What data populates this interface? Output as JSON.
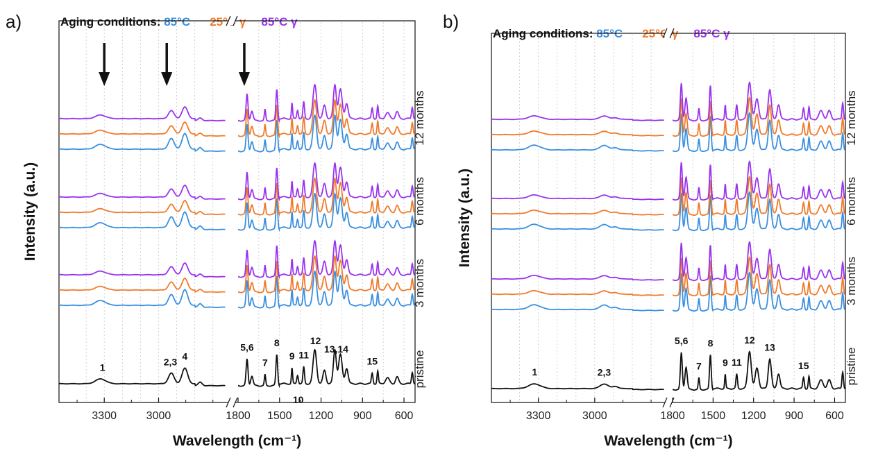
{
  "colors": {
    "blue": "#3a8fe0",
    "orange": "#f07a2a",
    "purple": "#9933ee",
    "black": "#111111"
  },
  "chart_data": [
    {
      "panel": "a)",
      "type": "line",
      "title": {
        "prefix": "Aging conditions:",
        "conditions": [
          {
            "label": "85°C",
            "color": "#3a8fe0"
          },
          {
            "label": "25°C γ",
            "color": "#f07a2a"
          },
          {
            "label": "85°C γ",
            "color": "#9933ee"
          }
        ]
      },
      "xlabel": "Wavelength (cm⁻¹)",
      "ylabel": "Intensity (a.u.)",
      "x_axis": "reversed, broken between ~2700 and 1800 cm⁻¹",
      "segment_left": {
        "xlim": [
          3550,
          2630
        ],
        "ticks": [
          "3300",
          "3000"
        ]
      },
      "segment_right": {
        "xlim": [
          1800,
          520
        ],
        "ticks": [
          "1800",
          "1500",
          "1200",
          "900",
          "600"
        ]
      },
      "grid": "vertical dotted",
      "series_groups": [
        "pristine",
        "3 months",
        "6 months",
        "12 months"
      ],
      "series_in_group": [
        "85°C",
        "25°C γ",
        "85°C γ"
      ],
      "peak_labels": [
        {
          "label": "1",
          "x": 3310
        },
        {
          "label": "2,3",
          "x": 2935
        },
        {
          "label": "4",
          "x": 2855
        },
        {
          "label": "5,6",
          "x": 1735
        },
        {
          "label": "7",
          "x": 1605
        },
        {
          "label": "8",
          "x": 1520
        },
        {
          "label": "9",
          "x": 1410
        },
        {
          "label": "10",
          "x": 1365
        },
        {
          "label": "11",
          "x": 1325
        },
        {
          "label": "12",
          "x": 1240
        },
        {
          "label": "13,14",
          "x": 1090
        },
        {
          "label": "15",
          "x": 830
        }
      ],
      "arrows_at": [
        3300,
        2955,
        1755
      ],
      "bands": [
        [
          3320,
          0.25,
          40
        ],
        [
          2930,
          0.55,
          22
        ],
        [
          2855,
          0.8,
          22
        ],
        [
          2770,
          0.18,
          15
        ],
        [
          1735,
          1.35,
          10
        ],
        [
          1700,
          0.5,
          12
        ],
        [
          1605,
          0.55,
          7
        ],
        [
          1520,
          1.6,
          9
        ],
        [
          1410,
          0.8,
          6
        ],
        [
          1370,
          0.45,
          8
        ],
        [
          1325,
          0.85,
          8
        ],
        [
          1245,
          1.75,
          18
        ],
        [
          1175,
          0.7,
          15
        ],
        [
          1100,
          1.75,
          15
        ],
        [
          1060,
          1.5,
          18
        ],
        [
          1015,
          0.8,
          15
        ],
        [
          830,
          0.55,
          8
        ],
        [
          790,
          0.65,
          7
        ],
        [
          720,
          0.3,
          20
        ],
        [
          650,
          0.35,
          15
        ],
        [
          540,
          0.6,
          8
        ]
      ],
      "baseline_drop": [
        [
          2800,
          1500,
          0.1
        ]
      ]
    },
    {
      "panel": "b)",
      "type": "line",
      "title": {
        "prefix": "Aging conditions:",
        "conditions": [
          {
            "label": "85°C",
            "color": "#3a8fe0"
          },
          {
            "label": "25°C γ",
            "color": "#f07a2a"
          },
          {
            "label": "85°C γ",
            "color": "#9933ee"
          }
        ]
      },
      "xlabel": "Wavelength (cm⁻¹)",
      "ylabel": "Intensity (a.u.)",
      "x_axis": "reversed, broken between ~2700 and 1800 cm⁻¹",
      "segment_left": {
        "xlim": [
          3550,
          2630
        ],
        "ticks": [
          "3300",
          "3000"
        ]
      },
      "segment_right": {
        "xlim": [
          1800,
          520
        ],
        "ticks": [
          "1800",
          "1500",
          "1200",
          "900",
          "600"
        ]
      },
      "grid": "vertical dotted",
      "series_groups": [
        "pristine",
        "3 months",
        "6 months",
        "12 months"
      ],
      "series_in_group": [
        "85°C",
        "25°C γ",
        "85°C γ"
      ],
      "peak_labels": [
        {
          "label": "1",
          "x": 3320
        },
        {
          "label": "2,3",
          "x": 2950
        },
        {
          "label": "5,6",
          "x": 1735
        },
        {
          "label": "7",
          "x": 1605
        },
        {
          "label": "8",
          "x": 1520
        },
        {
          "label": "9",
          "x": 1410
        },
        {
          "label": "11",
          "x": 1325
        },
        {
          "label": "12",
          "x": 1230
        },
        {
          "label": "13",
          "x": 1080
        },
        {
          "label": "15",
          "x": 830
        }
      ],
      "arrows_at": [],
      "bands": [
        [
          3320,
          0.25,
          45
        ],
        [
          2950,
          0.25,
          30
        ],
        [
          2890,
          0.12,
          20
        ],
        [
          1735,
          1.95,
          10
        ],
        [
          1700,
          1.2,
          12
        ],
        [
          1605,
          0.6,
          7
        ],
        [
          1520,
          1.85,
          9
        ],
        [
          1410,
          0.75,
          6
        ],
        [
          1325,
          0.75,
          8
        ],
        [
          1230,
          2.0,
          18
        ],
        [
          1175,
          1.1,
          18
        ],
        [
          1080,
          1.6,
          16
        ],
        [
          1015,
          0.8,
          15
        ],
        [
          830,
          0.6,
          8
        ],
        [
          790,
          0.65,
          7
        ],
        [
          700,
          0.45,
          22
        ],
        [
          640,
          0.45,
          18
        ],
        [
          540,
          0.9,
          8
        ]
      ],
      "baseline_drop": [
        [
          2800,
          1500,
          0.05
        ]
      ]
    }
  ]
}
